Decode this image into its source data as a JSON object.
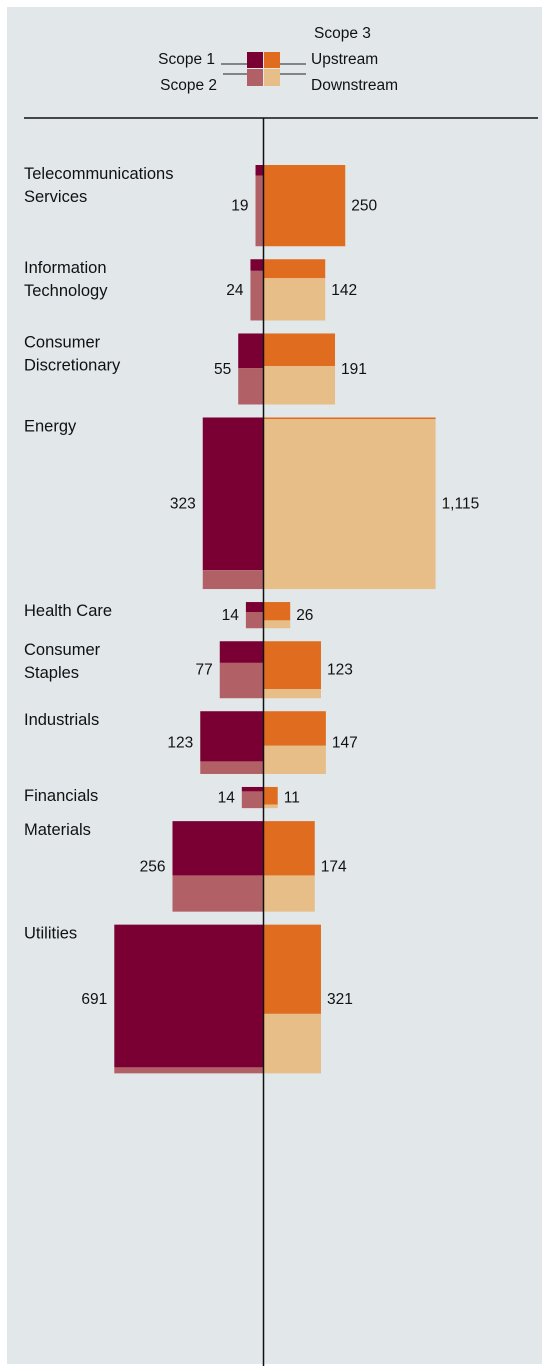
{
  "chart_data": {
    "type": "bar",
    "legend": {
      "scope1": "Scope 1",
      "scope2": "Scope 2",
      "scope3": "Scope 3",
      "upstream": "Upstream",
      "downstream": "Downstream"
    },
    "colors": {
      "scope1": "#7a0033",
      "scope2": "#b16065",
      "upstream": "#e06c1f",
      "downstream": "#e7bd88",
      "background": "#e2e7ea"
    },
    "sectors": [
      {
        "name": "Telecommunications\nServices",
        "left_label": "19",
        "right_label": "250",
        "scope1": 0.13,
        "scope2": 0.87,
        "upstream": 1.0,
        "downstream": 0.0
      },
      {
        "name": "Information\nTechnology",
        "left_label": "24",
        "right_label": "142",
        "scope1": 0.19,
        "scope2": 0.81,
        "upstream": 0.31,
        "downstream": 0.69
      },
      {
        "name": "Consumer\nDiscretionary",
        "left_label": "55",
        "right_label": "191",
        "scope1": 0.49,
        "scope2": 0.51,
        "upstream": 0.46,
        "downstream": 0.54
      },
      {
        "name": "Energy",
        "left_label": "323",
        "right_label": "1,115",
        "scope1": 0.89,
        "scope2": 0.11,
        "upstream": 0.01,
        "downstream": 0.99
      },
      {
        "name": "Health Care",
        "left_label": "14",
        "right_label": "26",
        "scope1": 0.38,
        "scope2": 0.62,
        "upstream": 0.7,
        "downstream": 0.3
      },
      {
        "name": "Consumer\nStaples",
        "left_label": "77",
        "right_label": "123",
        "scope1": 0.38,
        "scope2": 0.62,
        "upstream": 0.84,
        "downstream": 0.16
      },
      {
        "name": "Industrials",
        "left_label": "123",
        "right_label": "147",
        "scope1": 0.8,
        "scope2": 0.2,
        "upstream": 0.55,
        "downstream": 0.45
      },
      {
        "name": "Financials",
        "left_label": "14",
        "right_label": "11",
        "scope1": 0.21,
        "scope2": 0.79,
        "upstream": 0.83,
        "downstream": 0.17
      },
      {
        "name": "Materials",
        "left_label": "256",
        "right_label": "174",
        "scope1": 0.6,
        "scope2": 0.4,
        "upstream": 0.6,
        "downstream": 0.4
      },
      {
        "name": "Utilities",
        "left_label": "691",
        "right_label": "321",
        "scope1": 0.96,
        "scope2": 0.04,
        "upstream": 0.6,
        "downstream": 0.4
      }
    ]
  }
}
